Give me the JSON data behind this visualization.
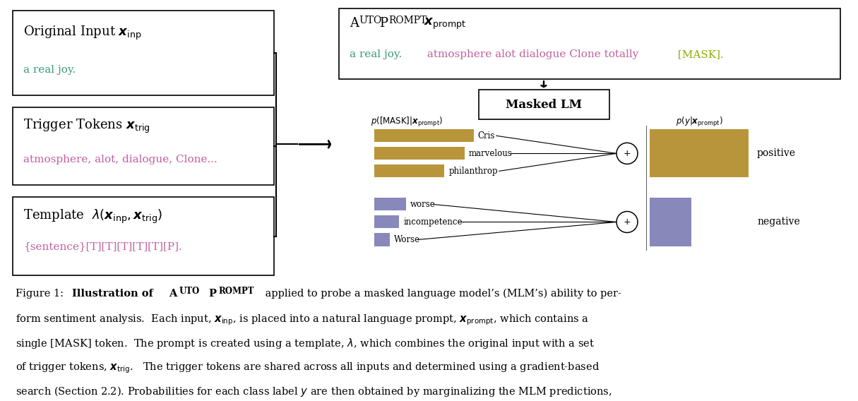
{
  "bg_color": "#ffffff",
  "bar_color_positive": "#b8953a",
  "bar_color_negative": "#8888bb",
  "positive_bars": [
    {
      "label": "Cris",
      "value": 0.88
    },
    {
      "label": "marvelous",
      "value": 0.8
    },
    {
      "label": "philanthrop",
      "value": 0.62
    }
  ],
  "negative_bars": [
    {
      "label": "worse",
      "value": 0.28
    },
    {
      "label": "incompetence",
      "value": 0.22
    },
    {
      "label": "Worse",
      "value": 0.14
    }
  ]
}
